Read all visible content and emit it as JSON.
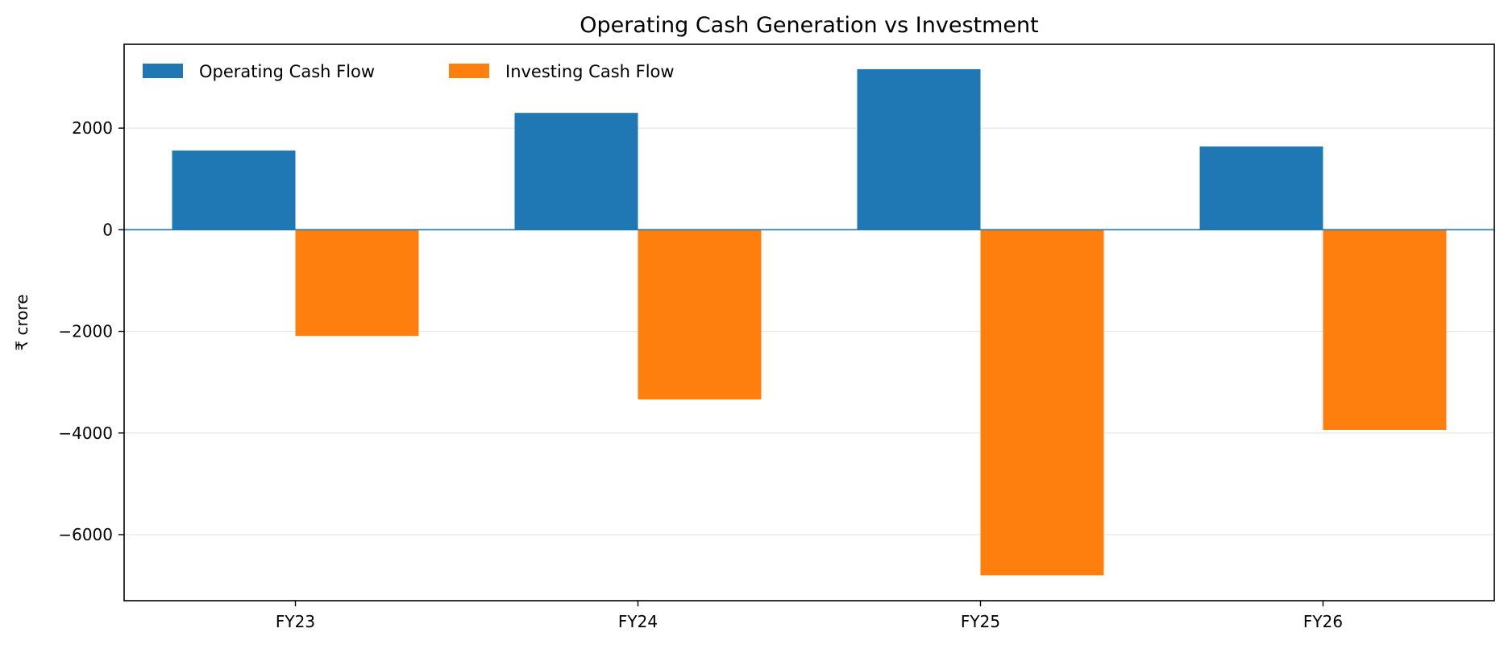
{
  "chart_data": {
    "type": "bar",
    "title": "Operating Cash Generation vs Investment",
    "xlabel": "",
    "ylabel": "₹ crore",
    "categories": [
      "FY23",
      "FY24",
      "FY25",
      "FY26"
    ],
    "series": [
      {
        "name": "Operating Cash Flow",
        "color": "#1f77b4",
        "values": [
          1560,
          2300,
          3160,
          1640
        ]
      },
      {
        "name": "Investing Cash Flow",
        "color": "#ff7f0e",
        "values": [
          -2090,
          -3340,
          -6800,
          -3940
        ]
      }
    ],
    "ylim": [
      -7300,
      3650
    ],
    "yticks": [
      {
        "value": 2000,
        "label": "2000"
      },
      {
        "value": 0,
        "label": "0"
      },
      {
        "value": -2000,
        "label": "−2000"
      },
      {
        "value": -4000,
        "label": "−4000"
      },
      {
        "value": -6000,
        "label": "−6000"
      }
    ],
    "grid": "horizontal",
    "zero_line_color": "#1f77b4",
    "legend": "top-left"
  }
}
